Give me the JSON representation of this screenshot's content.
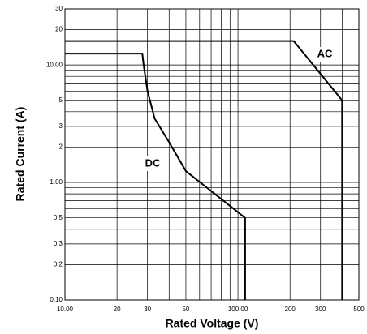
{
  "chart_data": {
    "type": "line",
    "xlabel": "Rated Voltage (V)",
    "ylabel": "Rated Current (A)",
    "xscale": "log",
    "yscale": "log",
    "xlim": [
      10,
      500
    ],
    "ylim": [
      0.1,
      30
    ],
    "xticks": [
      {
        "value": 10,
        "label": "10.00"
      },
      20,
      30,
      50,
      {
        "value": 100,
        "label": "100.00"
      },
      200,
      300,
      500
    ],
    "yticks": [
      {
        "value": 0.1,
        "label": "0.10"
      },
      0.2,
      0.3,
      0.5,
      {
        "value": 1,
        "label": "1.00"
      },
      2,
      3,
      5,
      {
        "value": 10,
        "label": "10.00"
      },
      20,
      30
    ],
    "minor_xticks": [
      40,
      60,
      70,
      80,
      90,
      400
    ],
    "minor_yticks": [
      0.4,
      0.6,
      0.7,
      0.8,
      0.9,
      4,
      6,
      7,
      8,
      9
    ],
    "grid": true,
    "series": [
      {
        "name": "AC",
        "color": "#000000",
        "x": [
          10,
          210,
          400,
          400
        ],
        "values": [
          16,
          16,
          5,
          0.1
        ]
      },
      {
        "name": "DC",
        "color": "#000000",
        "x": [
          10,
          28,
          28.5,
          30,
          33,
          40,
          50,
          110,
          110
        ],
        "values": [
          12.5,
          12.5,
          10,
          6,
          3.5,
          2.2,
          1.25,
          0.5,
          0.1
        ]
      }
    ]
  }
}
